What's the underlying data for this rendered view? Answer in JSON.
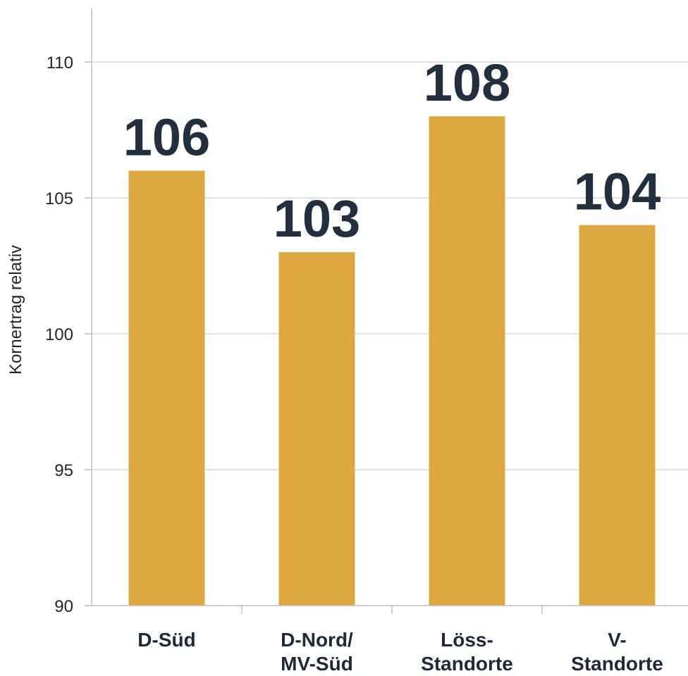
{
  "chart_data": {
    "type": "bar",
    "categories": [
      [
        "D-Süd"
      ],
      [
        "D-Nord/",
        "MV-Süd"
      ],
      [
        "Löss-",
        "Standorte"
      ],
      [
        "V-",
        "Standorte"
      ]
    ],
    "values": [
      106,
      103,
      108,
      104
    ],
    "data_labels": [
      "106",
      "103",
      "108",
      "104"
    ],
    "ylabel": "Kornertrag relativ",
    "ylim": [
      90,
      112
    ],
    "yticks": [
      90,
      95,
      100,
      105,
      110
    ],
    "grid": true,
    "legend": "none",
    "colors": {
      "bar": "#DDA83F",
      "grid": "#d9d9d9",
      "axis": "#bfbfbf",
      "label": "#222f3d"
    }
  }
}
